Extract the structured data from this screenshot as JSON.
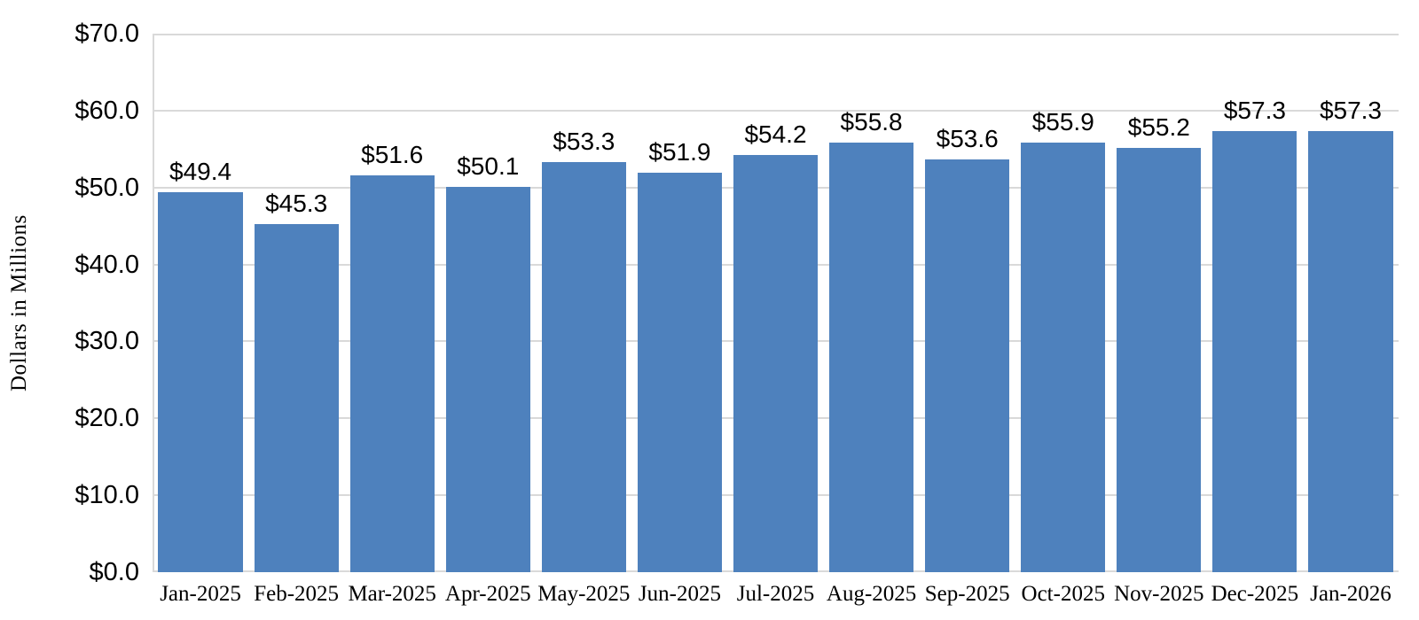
{
  "chart_data": {
    "type": "bar",
    "title": "",
    "xlabel": "",
    "ylabel": "Dollars in Millions",
    "categories": [
      "Jan-2025",
      "Feb-2025",
      "Mar-2025",
      "Apr-2025",
      "May-2025",
      "Jun-2025",
      "Jul-2025",
      "Aug-2025",
      "Sep-2025",
      "Oct-2025",
      "Nov-2025",
      "Dec-2025",
      "Jan-2026"
    ],
    "values": [
      49.4,
      45.3,
      51.6,
      50.1,
      53.3,
      51.9,
      54.2,
      55.8,
      53.6,
      55.9,
      55.2,
      57.3,
      57.3
    ],
    "data_labels": [
      "$49.4",
      "$45.3",
      "$51.6",
      "$50.1",
      "$53.3",
      "$51.9",
      "$54.2",
      "$55.8",
      "$53.6",
      "$55.9",
      "$55.2",
      "$57.3",
      "$57.3"
    ],
    "ylim": [
      0,
      70
    ],
    "y_tick_step": 10,
    "y_tick_labels": [
      "$0.0",
      "$10.0",
      "$20.0",
      "$30.0",
      "$40.0",
      "$50.0",
      "$60.0",
      "$70.0"
    ],
    "grid": true,
    "legend": "none",
    "colors": {
      "bar": "#4E81BD",
      "gridline": "#D9D9D9",
      "axis_line": "#D9D9D9",
      "text": "#000000",
      "background": "#FFFFFF"
    }
  }
}
